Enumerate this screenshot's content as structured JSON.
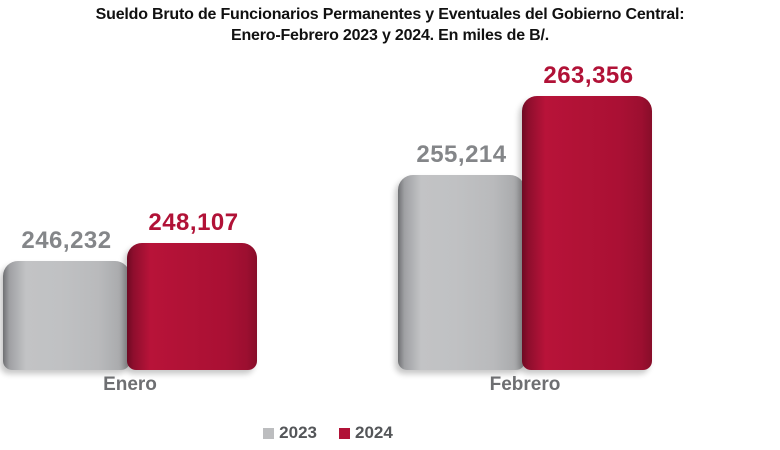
{
  "title": {
    "line1": "Sueldo Bruto de Funcionarios Permanentes y Eventuales del Gobierno Central:",
    "line2": "Enero-Febrero 2023 y 2024. En miles de B/."
  },
  "chart_data": {
    "type": "bar",
    "title": "Sueldo Bruto de Funcionarios Permanentes y Eventuales del Gobierno Central: Enero-Febrero 2023 y 2024. En miles de B/.",
    "unit": "miles de B/.",
    "categories": [
      "Enero",
      "Febrero"
    ],
    "series": [
      {
        "name": "2023",
        "color": "#bcbdbf",
        "values": [
          246232,
          255214
        ],
        "labels": [
          "246,232",
          "255,214"
        ]
      },
      {
        "name": "2024",
        "color": "#b11237",
        "values": [
          248107,
          263356
        ],
        "labels": [
          "248,107",
          "263,356"
        ]
      }
    ],
    "ylim": [
      235000,
      265000
    ],
    "axis_visible": false,
    "grid": false,
    "legend_position": "bottom",
    "value_label_colors": {
      "2023": "#848689",
      "2024": "#b11237"
    },
    "category_label_color": "#6e6f72",
    "legend_text_color": "#545659",
    "background_color": "#ffffff"
  }
}
